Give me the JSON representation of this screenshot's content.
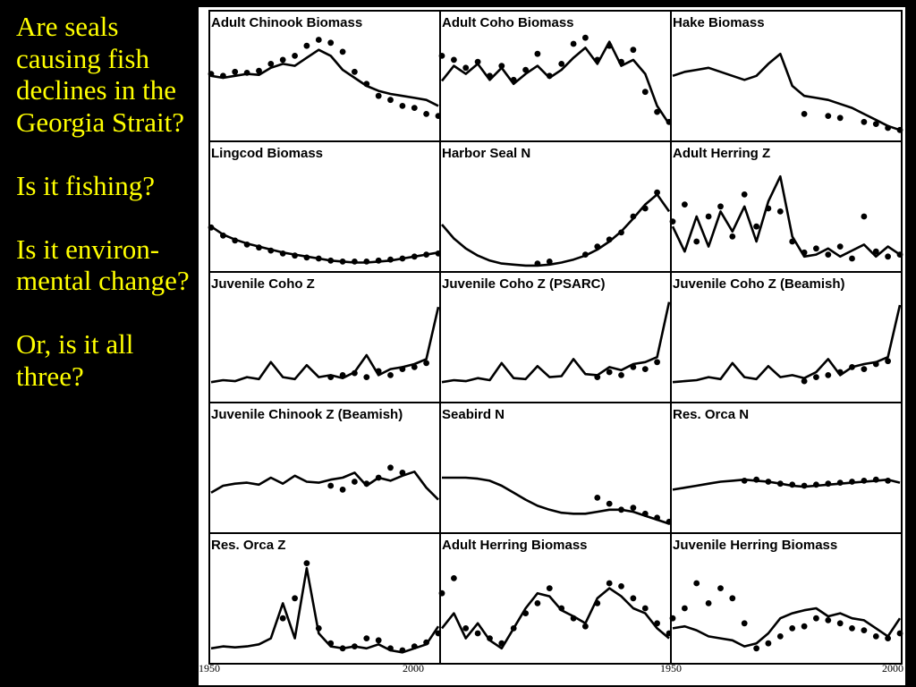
{
  "slide": {
    "questions": [
      "Are seals causing fish declines in the Georgia Strait?",
      "Is it fishing?",
      "Is it environ-mental change?",
      "Or, is it all three?"
    ],
    "text_color": "#ffff00",
    "background": "#000000"
  },
  "chart_data": {
    "type": "line",
    "layout": "5x3 small multiples",
    "x_ticks": [
      "1950",
      "2000",
      "1950",
      "2000"
    ],
    "panels": [
      {
        "title": "Adult Chinook Biomass",
        "model": [
          0.6,
          0.58,
          0.6,
          0.62,
          0.61,
          0.68,
          0.72,
          0.7,
          0.78,
          0.86,
          0.8,
          0.66,
          0.58,
          0.5,
          0.45,
          0.42,
          0.4,
          0.38,
          0.36,
          0.3
        ],
        "obs": [
          0.62,
          0.6,
          0.64,
          0.63,
          0.65,
          0.72,
          0.76,
          0.8,
          0.9,
          0.96,
          0.93,
          0.84,
          0.64,
          0.52,
          0.4,
          0.36,
          0.3,
          0.28,
          0.22,
          0.2
        ]
      },
      {
        "title": "Adult Coho Biomass",
        "model": [
          0.55,
          0.7,
          0.62,
          0.72,
          0.56,
          0.68,
          0.52,
          0.62,
          0.7,
          0.58,
          0.66,
          0.78,
          0.88,
          0.72,
          0.94,
          0.7,
          0.76,
          0.62,
          0.3,
          0.12
        ],
        "obs": [
          0.8,
          0.76,
          0.68,
          0.74,
          0.6,
          0.7,
          0.56,
          0.66,
          0.82,
          0.6,
          0.72,
          0.92,
          0.98,
          0.76,
          0.9,
          0.74,
          0.86,
          0.44,
          0.24,
          0.14
        ]
      },
      {
        "title": "Hake Biomass",
        "model": [
          0.6,
          0.64,
          0.66,
          0.68,
          0.64,
          0.6,
          0.56,
          0.6,
          0.72,
          0.82,
          0.5,
          0.4,
          0.38,
          0.36,
          0.32,
          0.28,
          0.22,
          0.16,
          0.1,
          0.06
        ],
        "obs": [
          null,
          null,
          null,
          null,
          null,
          null,
          null,
          null,
          null,
          null,
          null,
          0.22,
          null,
          0.2,
          0.18,
          null,
          0.14,
          0.12,
          0.08,
          0.06
        ]
      },
      {
        "title": "Lingcod Biomass",
        "model": [
          0.4,
          0.32,
          0.27,
          0.23,
          0.2,
          0.17,
          0.14,
          0.12,
          0.1,
          0.08,
          0.06,
          0.05,
          0.04,
          0.04,
          0.05,
          0.06,
          0.08,
          0.1,
          0.12,
          0.14
        ],
        "obs": [
          0.39,
          0.31,
          0.26,
          0.22,
          0.19,
          0.16,
          0.13,
          0.11,
          0.09,
          0.08,
          0.06,
          0.05,
          0.05,
          0.05,
          0.06,
          0.07,
          0.08,
          0.1,
          0.12,
          0.13
        ]
      },
      {
        "title": "Harbor Seal N",
        "model": [
          0.42,
          0.28,
          0.18,
          0.11,
          0.06,
          0.03,
          0.02,
          0.01,
          0.01,
          0.02,
          0.04,
          0.07,
          0.11,
          0.17,
          0.25,
          0.35,
          0.48,
          0.62,
          0.72,
          0.55
        ],
        "obs": [
          null,
          null,
          null,
          null,
          null,
          null,
          null,
          null,
          0.03,
          0.05,
          null,
          null,
          0.12,
          0.2,
          0.27,
          0.34,
          0.5,
          0.58,
          0.74,
          null
        ]
      },
      {
        "title": "Adult Herring Z",
        "model": [
          0.4,
          0.15,
          0.5,
          0.2,
          0.55,
          0.35,
          0.6,
          0.25,
          0.65,
          0.9,
          0.3,
          0.1,
          0.12,
          0.18,
          0.1,
          0.16,
          0.22,
          0.1,
          0.2,
          0.12
        ],
        "obs": [
          0.45,
          0.62,
          0.25,
          0.5,
          0.6,
          0.3,
          0.72,
          0.4,
          0.58,
          0.55,
          0.25,
          0.14,
          0.18,
          0.12,
          0.2,
          0.08,
          0.5,
          0.15,
          0.1,
          0.12
        ]
      },
      {
        "title": "Juvenile Coho Z",
        "model": [
          0.15,
          0.17,
          0.16,
          0.2,
          0.18,
          0.35,
          0.2,
          0.18,
          0.32,
          0.2,
          0.22,
          0.19,
          0.25,
          0.42,
          0.22,
          0.28,
          0.3,
          0.33,
          0.38,
          0.9
        ],
        "obs": [
          null,
          null,
          null,
          null,
          null,
          null,
          null,
          null,
          null,
          null,
          0.2,
          0.22,
          0.24,
          0.2,
          0.26,
          0.22,
          0.28,
          0.3,
          0.34,
          null
        ]
      },
      {
        "title": "Juvenile Coho Z (PSARC)",
        "model": [
          0.15,
          0.17,
          0.16,
          0.19,
          0.17,
          0.34,
          0.19,
          0.18,
          0.31,
          0.2,
          0.21,
          0.38,
          0.23,
          0.22,
          0.3,
          0.27,
          0.33,
          0.35,
          0.4,
          0.95
        ],
        "obs": [
          null,
          null,
          null,
          null,
          null,
          null,
          null,
          null,
          null,
          null,
          null,
          null,
          null,
          0.2,
          0.25,
          0.22,
          0.3,
          0.28,
          0.35,
          null
        ]
      },
      {
        "title": "Juvenile Coho Z (Beamish)",
        "model": [
          0.15,
          0.16,
          0.17,
          0.2,
          0.18,
          0.34,
          0.2,
          0.18,
          0.31,
          0.2,
          0.22,
          0.19,
          0.25,
          0.38,
          0.22,
          0.3,
          0.33,
          0.35,
          0.4,
          0.92
        ],
        "obs": [
          null,
          null,
          null,
          null,
          null,
          null,
          null,
          null,
          null,
          null,
          null,
          0.16,
          0.2,
          0.22,
          0.25,
          0.3,
          0.28,
          0.33,
          0.36,
          null
        ]
      },
      {
        "title": "Juvenile Chinook Z (Beamish)",
        "model": [
          0.35,
          0.42,
          0.44,
          0.45,
          0.43,
          0.5,
          0.44,
          0.52,
          0.46,
          0.45,
          0.48,
          0.5,
          0.55,
          0.42,
          0.5,
          0.47,
          0.52,
          0.56,
          0.4,
          0.28
        ],
        "obs": [
          null,
          null,
          null,
          null,
          null,
          null,
          null,
          null,
          null,
          null,
          0.42,
          0.38,
          0.46,
          0.44,
          0.5,
          0.6,
          0.55,
          null,
          null,
          null
        ]
      },
      {
        "title": "Seabird N",
        "model": [
          0.5,
          0.5,
          0.5,
          0.49,
          0.47,
          0.42,
          0.35,
          0.28,
          0.22,
          0.18,
          0.15,
          0.14,
          0.14,
          0.16,
          0.18,
          0.18,
          0.16,
          0.12,
          0.08,
          0.04
        ],
        "obs": [
          null,
          null,
          null,
          null,
          null,
          null,
          null,
          null,
          null,
          null,
          null,
          null,
          null,
          0.3,
          0.24,
          0.18,
          0.2,
          0.14,
          0.1,
          0.06
        ]
      },
      {
        "title": "Res. Orca N",
        "model": [
          0.38,
          0.4,
          0.42,
          0.44,
          0.46,
          0.47,
          0.48,
          0.47,
          0.46,
          0.44,
          0.42,
          0.41,
          0.42,
          0.43,
          0.44,
          0.45,
          0.46,
          0.47,
          0.48,
          0.45
        ],
        "obs": [
          null,
          null,
          null,
          null,
          null,
          null,
          0.47,
          0.48,
          0.46,
          0.44,
          0.43,
          0.42,
          0.43,
          0.44,
          0.45,
          0.46,
          0.47,
          0.48,
          0.47,
          null
        ]
      },
      {
        "title": "Res. Orca Z",
        "model": [
          0.1,
          0.12,
          0.11,
          0.12,
          0.14,
          0.2,
          0.55,
          0.2,
          0.9,
          0.25,
          0.12,
          0.1,
          0.12,
          0.1,
          0.14,
          0.08,
          0.06,
          0.1,
          0.14,
          0.32
        ],
        "obs": [
          null,
          null,
          null,
          null,
          null,
          null,
          0.4,
          0.6,
          0.95,
          0.3,
          0.15,
          0.1,
          0.12,
          0.2,
          0.18,
          0.1,
          0.08,
          0.12,
          0.16,
          0.25
        ]
      },
      {
        "title": "Adult Herring Biomass",
        "model": [
          0.3,
          0.45,
          0.2,
          0.35,
          0.18,
          0.1,
          0.3,
          0.5,
          0.65,
          0.62,
          0.48,
          0.42,
          0.35,
          0.6,
          0.7,
          0.62,
          0.5,
          0.45,
          0.3,
          0.2
        ],
        "obs": [
          0.65,
          0.8,
          0.3,
          0.25,
          0.2,
          0.15,
          0.3,
          0.45,
          0.55,
          0.7,
          0.5,
          0.4,
          0.32,
          0.55,
          0.75,
          0.72,
          0.6,
          0.5,
          0.35,
          0.25
        ]
      },
      {
        "title": "Juvenile Herring Biomass",
        "model": [
          0.3,
          0.32,
          0.28,
          0.22,
          0.2,
          0.18,
          0.12,
          0.15,
          0.25,
          0.4,
          0.45,
          0.48,
          0.5,
          0.42,
          0.45,
          0.4,
          0.38,
          0.3,
          0.22,
          0.4
        ],
        "obs": [
          0.4,
          0.5,
          0.75,
          0.55,
          0.7,
          0.6,
          0.35,
          0.1,
          0.15,
          0.22,
          0.3,
          0.32,
          0.4,
          0.38,
          0.35,
          0.3,
          0.28,
          0.22,
          0.2,
          0.25
        ]
      }
    ]
  }
}
